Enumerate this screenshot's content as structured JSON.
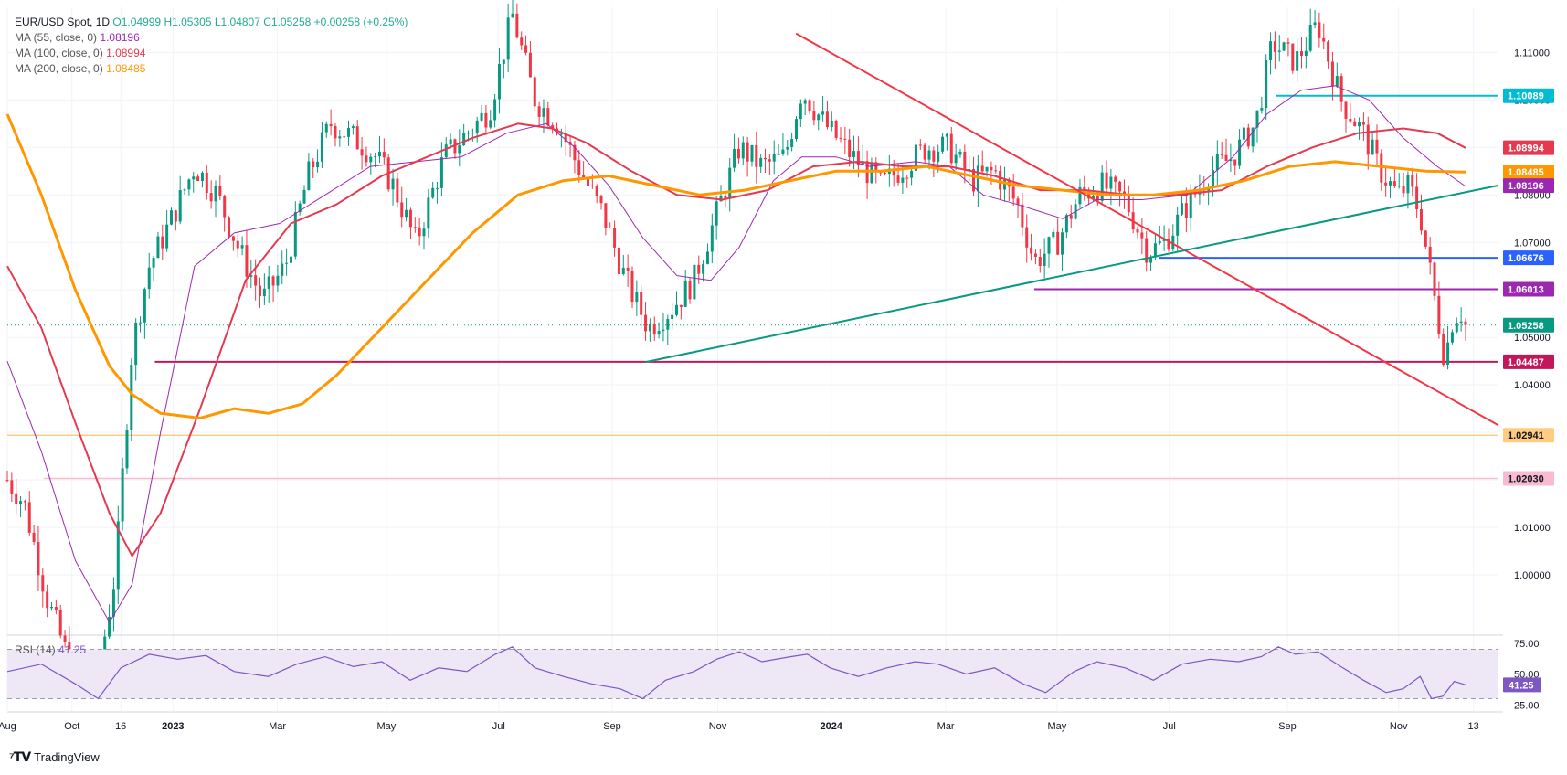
{
  "header": {
    "symbol": "EUR/USD Spot, 1D",
    "o": "O1.04999",
    "h": "H1.05305",
    "l": "L1.04807",
    "c": "C1.05258",
    "change": "+0.00258 (+0.25%)"
  },
  "indicators": [
    {
      "label": "MA (55, close, 0)",
      "value": "1.08196",
      "color": "#9c27b0"
    },
    {
      "label": "MA (100, close, 0)",
      "value": "1.08994",
      "color": "#e53950"
    },
    {
      "label": "MA (200, close, 0)",
      "value": "1.08485",
      "color": "#ff9800"
    }
  ],
  "rsi": {
    "label": "RSI (14)",
    "value": "41.25"
  },
  "brand": {
    "name": "TradingView",
    "logo": "TV-logo-icon"
  },
  "colors": {
    "up": "#089981",
    "down": "#f23645",
    "ma55": "#9c27b0",
    "ma100": "#e53950",
    "ma200": "#ff9800",
    "rsi": "#7e57c2",
    "rsi_band": "#ede7f6"
  },
  "chart_data": {
    "type": "candlestick",
    "title": "EUR/USD Spot, 1D",
    "ylim": [
      0.9875,
      1.1195
    ],
    "y_ticks": [
      "1.11000",
      "1.10000",
      "1.09000",
      "1.08000",
      "1.07000",
      "1.06000",
      "1.05000",
      "1.04000",
      "1.03000",
      "1.02000",
      "1.01000",
      "1.00000"
    ],
    "x_ticks": [
      {
        "label": "Aug",
        "t": 0.0
      },
      {
        "label": "Oct",
        "t": 0.57
      },
      {
        "label": "16",
        "t": 1.0
      },
      {
        "label": "2023",
        "t": 1.46
      },
      {
        "label": "Mar",
        "t": 2.38
      },
      {
        "label": "May",
        "t": 3.34
      },
      {
        "label": "Jul",
        "t": 4.33
      },
      {
        "label": "Sep",
        "t": 5.33
      },
      {
        "label": "Nov",
        "t": 6.26
      },
      {
        "label": "2024",
        "t": 7.26
      },
      {
        "label": "Mar",
        "t": 8.27
      },
      {
        "label": "May",
        "t": 9.25
      },
      {
        "label": "Jul",
        "t": 10.24
      },
      {
        "label": "Sep",
        "t": 11.28
      },
      {
        "label": "Nov",
        "t": 12.26
      },
      {
        "label": "13",
        "t": 12.92
      }
    ],
    "price_path": [
      [
        0.0,
        1.02
      ],
      [
        0.15,
        1.015
      ],
      [
        0.35,
        0.995
      ],
      [
        0.6,
        0.978
      ],
      [
        0.8,
        0.979
      ],
      [
        0.95,
        1.0
      ],
      [
        1.1,
        1.048
      ],
      [
        1.25,
        1.065
      ],
      [
        1.45,
        1.075
      ],
      [
        1.65,
        1.086
      ],
      [
        1.85,
        1.08
      ],
      [
        2.05,
        1.068
      ],
      [
        2.25,
        1.058
      ],
      [
        2.45,
        1.065
      ],
      [
        2.65,
        1.084
      ],
      [
        2.85,
        1.095
      ],
      [
        3.05,
        1.092
      ],
      [
        3.25,
        1.088
      ],
      [
        3.4,
        1.082
      ],
      [
        3.6,
        1.07
      ],
      [
        3.85,
        1.088
      ],
      [
        4.05,
        1.093
      ],
      [
        4.25,
        1.098
      ],
      [
        4.45,
        1.118
      ],
      [
        4.65,
        1.1
      ],
      [
        4.85,
        1.095
      ],
      [
        5.05,
        1.085
      ],
      [
        5.25,
        1.076
      ],
      [
        5.45,
        1.062
      ],
      [
        5.65,
        1.052
      ],
      [
        5.85,
        1.056
      ],
      [
        6.05,
        1.062
      ],
      [
        6.25,
        1.076
      ],
      [
        6.45,
        1.09
      ],
      [
        6.65,
        1.086
      ],
      [
        6.85,
        1.088
      ],
      [
        7.0,
        1.102
      ],
      [
        7.2,
        1.095
      ],
      [
        7.45,
        1.088
      ],
      [
        7.7,
        1.082
      ],
      [
        7.9,
        1.086
      ],
      [
        8.1,
        1.09
      ],
      [
        8.3,
        1.09
      ],
      [
        8.5,
        1.083
      ],
      [
        8.7,
        1.085
      ],
      [
        8.9,
        1.078
      ],
      [
        9.05,
        1.066
      ],
      [
        9.25,
        1.07
      ],
      [
        9.45,
        1.08
      ],
      [
        9.65,
        1.082
      ],
      [
        9.85,
        1.079
      ],
      [
        10.05,
        1.068
      ],
      [
        10.2,
        1.07
      ],
      [
        10.4,
        1.078
      ],
      [
        10.6,
        1.085
      ],
      [
        10.8,
        1.088
      ],
      [
        11.0,
        1.095
      ],
      [
        11.15,
        1.112
      ],
      [
        11.35,
        1.108
      ],
      [
        11.55,
        1.116
      ],
      [
        11.75,
        1.1
      ],
      [
        11.95,
        1.093
      ],
      [
        12.1,
        1.085
      ],
      [
        12.25,
        1.08
      ],
      [
        12.35,
        1.082
      ],
      [
        12.45,
        1.076
      ],
      [
        12.55,
        1.062
      ],
      [
        12.62,
        1.052
      ],
      [
        12.67,
        1.045
      ],
      [
        12.72,
        1.053
      ],
      [
        12.8,
        1.056
      ],
      [
        12.85,
        1.0525
      ]
    ],
    "series": [
      {
        "name": "MA (55, close, 0)",
        "color": "#9c27b0",
        "width": 1,
        "points": [
          [
            0.0,
            1.045
          ],
          [
            0.3,
            1.026
          ],
          [
            0.6,
            1.003
          ],
          [
            0.9,
            0.99
          ],
          [
            1.1,
            0.998
          ],
          [
            1.35,
            1.03
          ],
          [
            1.65,
            1.065
          ],
          [
            2.0,
            1.072
          ],
          [
            2.4,
            1.074
          ],
          [
            2.8,
            1.08
          ],
          [
            3.2,
            1.086
          ],
          [
            3.6,
            1.087
          ],
          [
            4.0,
            1.088
          ],
          [
            4.4,
            1.093
          ],
          [
            4.75,
            1.095
          ],
          [
            5.0,
            1.09
          ],
          [
            5.3,
            1.082
          ],
          [
            5.6,
            1.071
          ],
          [
            5.9,
            1.063
          ],
          [
            6.2,
            1.062
          ],
          [
            6.45,
            1.069
          ],
          [
            6.75,
            1.083
          ],
          [
            7.0,
            1.088
          ],
          [
            7.3,
            1.088
          ],
          [
            7.6,
            1.086
          ],
          [
            8.0,
            1.087
          ],
          [
            8.3,
            1.086
          ],
          [
            8.6,
            1.08
          ],
          [
            8.9,
            1.078
          ],
          [
            9.3,
            1.075
          ],
          [
            9.6,
            1.079
          ],
          [
            10.0,
            1.079
          ],
          [
            10.4,
            1.08
          ],
          [
            10.8,
            1.088
          ],
          [
            11.1,
            1.097
          ],
          [
            11.4,
            1.102
          ],
          [
            11.7,
            1.103
          ],
          [
            12.0,
            1.1
          ],
          [
            12.3,
            1.092
          ],
          [
            12.6,
            1.086
          ],
          [
            12.85,
            1.0818
          ]
        ]
      },
      {
        "name": "MA (100, close, 0)",
        "color": "#e53950",
        "width": 2,
        "points": [
          [
            0.0,
            1.065
          ],
          [
            0.3,
            1.052
          ],
          [
            0.6,
            1.032
          ],
          [
            0.9,
            1.013
          ],
          [
            1.1,
            1.004
          ],
          [
            1.35,
            1.013
          ],
          [
            1.7,
            1.035
          ],
          [
            2.1,
            1.062
          ],
          [
            2.5,
            1.074
          ],
          [
            2.9,
            1.078
          ],
          [
            3.3,
            1.084
          ],
          [
            3.7,
            1.088
          ],
          [
            4.1,
            1.092
          ],
          [
            4.5,
            1.095
          ],
          [
            4.8,
            1.094
          ],
          [
            5.1,
            1.091
          ],
          [
            5.5,
            1.085
          ],
          [
            5.9,
            1.08
          ],
          [
            6.3,
            1.079
          ],
          [
            6.7,
            1.081
          ],
          [
            7.1,
            1.086
          ],
          [
            7.5,
            1.087
          ],
          [
            7.9,
            1.086
          ],
          [
            8.3,
            1.086
          ],
          [
            8.7,
            1.084
          ],
          [
            9.1,
            1.081
          ],
          [
            9.5,
            1.081
          ],
          [
            9.9,
            1.08
          ],
          [
            10.3,
            1.08
          ],
          [
            10.7,
            1.081
          ],
          [
            11.1,
            1.086
          ],
          [
            11.5,
            1.09
          ],
          [
            11.9,
            1.093
          ],
          [
            12.3,
            1.094
          ],
          [
            12.6,
            1.093
          ],
          [
            12.85,
            1.0899
          ]
        ]
      },
      {
        "name": "MA (200, close, 0)",
        "color": "#ff9800",
        "width": 3,
        "points": [
          [
            0.0,
            1.097
          ],
          [
            0.3,
            1.08
          ],
          [
            0.6,
            1.06
          ],
          [
            0.9,
            1.044
          ],
          [
            1.1,
            1.038
          ],
          [
            1.35,
            1.034
          ],
          [
            1.7,
            1.033
          ],
          [
            2.0,
            1.035
          ],
          [
            2.3,
            1.034
          ],
          [
            2.6,
            1.036
          ],
          [
            2.9,
            1.042
          ],
          [
            3.3,
            1.052
          ],
          [
            3.7,
            1.062
          ],
          [
            4.1,
            1.072
          ],
          [
            4.5,
            1.08
          ],
          [
            4.9,
            1.083
          ],
          [
            5.3,
            1.084
          ],
          [
            5.7,
            1.082
          ],
          [
            6.1,
            1.08
          ],
          [
            6.5,
            1.081
          ],
          [
            6.9,
            1.083
          ],
          [
            7.3,
            1.085
          ],
          [
            7.7,
            1.085
          ],
          [
            8.1,
            1.086
          ],
          [
            8.5,
            1.084
          ],
          [
            8.9,
            1.082
          ],
          [
            9.3,
            1.081
          ],
          [
            9.7,
            1.08
          ],
          [
            10.1,
            1.08
          ],
          [
            10.5,
            1.081
          ],
          [
            10.9,
            1.083
          ],
          [
            11.3,
            1.086
          ],
          [
            11.7,
            1.087
          ],
          [
            12.1,
            1.086
          ],
          [
            12.5,
            1.085
          ],
          [
            12.85,
            1.0848
          ]
        ]
      }
    ],
    "price_levels": [
      {
        "value": 1.10089,
        "label": "1.10089",
        "color": "#00bcd4",
        "t_start": 11.18
      },
      {
        "value": 1.08994,
        "label": "1.08994",
        "color": "#e53950",
        "t_start": null
      },
      {
        "value": 1.08485,
        "label": "1.08485",
        "color": "#ff9800",
        "t_start": null
      },
      {
        "value": 1.08196,
        "label": "1.08196",
        "color": "#9c27b0",
        "t_start": null
      },
      {
        "value": 1.06676,
        "label": "1.06676",
        "color": "#2962ff",
        "t_start": 10.15
      },
      {
        "value": 1.06013,
        "label": "1.06013",
        "color": "#9c27b0",
        "t_start": 9.05
      },
      {
        "value": 1.05258,
        "label": "1.05258",
        "color": "#089981",
        "t_start": 0.0,
        "dotted": true
      },
      {
        "value": 1.04487,
        "label": "1.04487",
        "color": "#c2185b",
        "t_start": 1.3
      },
      {
        "value": 1.02941,
        "label": "1.02941",
        "color": "#ffcc80",
        "t_start": 0.0,
        "light": true
      },
      {
        "value": 1.0203,
        "label": "1.02030",
        "color": "#f8bbd0",
        "t_start": 0.32,
        "light": true
      }
    ],
    "trendlines": [
      {
        "name": "descending-trendline",
        "color": "#f23645",
        "from": [
          6.95,
          1.114
        ],
        "to": [
          13.14,
          1.0315
        ]
      },
      {
        "name": "ascending-trendline",
        "color": "#089981",
        "from": [
          5.62,
          1.0448
        ],
        "to": [
          13.14,
          1.082
        ]
      }
    ],
    "rsi": {
      "ylim": [
        20,
        80
      ],
      "y_ticks": [
        75,
        50,
        25
      ],
      "band": [
        30,
        70
      ],
      "points": [
        [
          0.0,
          52
        ],
        [
          0.3,
          58
        ],
        [
          0.6,
          42
        ],
        [
          0.8,
          30
        ],
        [
          1.0,
          55
        ],
        [
          1.25,
          66
        ],
        [
          1.5,
          62
        ],
        [
          1.75,
          65
        ],
        [
          2.0,
          52
        ],
        [
          2.3,
          48
        ],
        [
          2.55,
          58
        ],
        [
          2.8,
          64
        ],
        [
          3.05,
          56
        ],
        [
          3.3,
          60
        ],
        [
          3.55,
          45
        ],
        [
          3.8,
          55
        ],
        [
          4.05,
          52
        ],
        [
          4.3,
          66
        ],
        [
          4.45,
          72
        ],
        [
          4.65,
          55
        ],
        [
          4.9,
          48
        ],
        [
          5.15,
          42
        ],
        [
          5.4,
          38
        ],
        [
          5.6,
          30
        ],
        [
          5.8,
          45
        ],
        [
          6.05,
          52
        ],
        [
          6.25,
          62
        ],
        [
          6.45,
          68
        ],
        [
          6.65,
          60
        ],
        [
          6.9,
          64
        ],
        [
          7.05,
          66
        ],
        [
          7.25,
          55
        ],
        [
          7.5,
          48
        ],
        [
          7.75,
          55
        ],
        [
          8.0,
          60
        ],
        [
          8.2,
          58
        ],
        [
          8.45,
          50
        ],
        [
          8.7,
          55
        ],
        [
          8.95,
          42
        ],
        [
          9.15,
          35
        ],
        [
          9.4,
          52
        ],
        [
          9.6,
          60
        ],
        [
          9.85,
          55
        ],
        [
          10.1,
          45
        ],
        [
          10.35,
          58
        ],
        [
          10.6,
          62
        ],
        [
          10.85,
          60
        ],
        [
          11.05,
          64
        ],
        [
          11.2,
          72
        ],
        [
          11.35,
          66
        ],
        [
          11.55,
          68
        ],
        [
          11.75,
          56
        ],
        [
          11.95,
          45
        ],
        [
          12.15,
          35
        ],
        [
          12.3,
          38
        ],
        [
          12.45,
          48
        ],
        [
          12.55,
          30
        ],
        [
          12.65,
          32
        ],
        [
          12.75,
          44
        ],
        [
          12.85,
          41.25
        ]
      ]
    }
  }
}
